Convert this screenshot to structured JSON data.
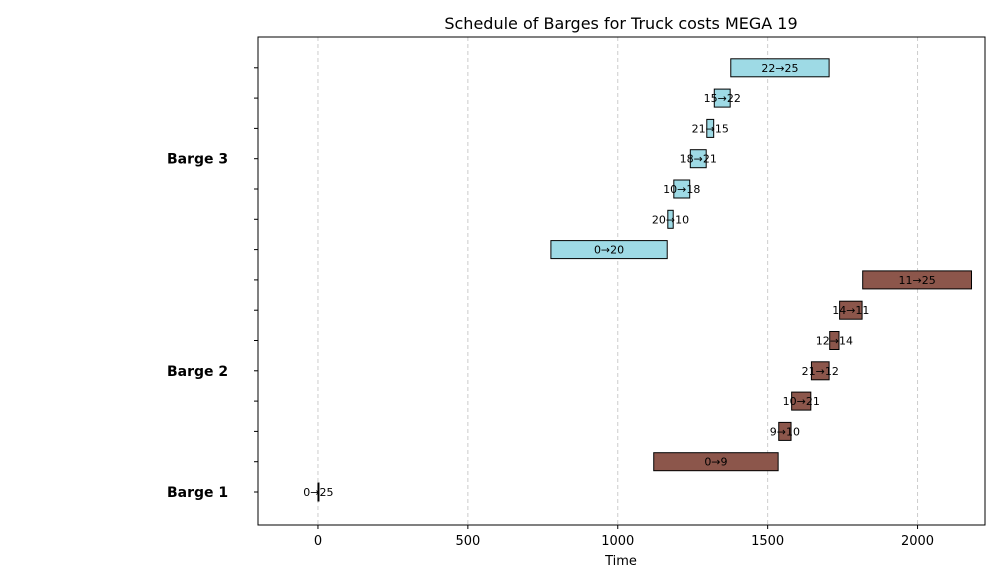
{
  "chart_data": {
    "type": "gantt",
    "title": "Schedule of Barges for Truck costs MEGA 19",
    "xlabel": "Time",
    "ylabel": "",
    "xlim": [
      -200,
      2225
    ],
    "xticks": [
      0,
      500,
      1000,
      1500,
      2000
    ],
    "grid": "x-dashed",
    "rows": 15,
    "groups": [
      {
        "name": "Barge 1",
        "label_row": 0
      },
      {
        "name": "Barge 2",
        "label_row": 4
      },
      {
        "name": "Barge 3",
        "label_row": 11
      }
    ],
    "series": [
      {
        "name": "Barge 1",
        "color": "#ffffff",
        "tasks": [
          {
            "label": "0→25",
            "row": 0,
            "start": 0,
            "end": 3
          }
        ]
      },
      {
        "name": "Barge 2",
        "color": "#8c564b",
        "tasks": [
          {
            "label": "0→9",
            "row": 1,
            "start": 1120,
            "end": 1535
          },
          {
            "label": "9→10",
            "row": 2,
            "start": 1537,
            "end": 1578
          },
          {
            "label": "10→21",
            "row": 3,
            "start": 1580,
            "end": 1644
          },
          {
            "label": "21→12",
            "row": 4,
            "start": 1646,
            "end": 1705
          },
          {
            "label": "12→14",
            "row": 5,
            "start": 1707,
            "end": 1738
          },
          {
            "label": "14→11",
            "row": 6,
            "start": 1740,
            "end": 1815
          },
          {
            "label": "11→25",
            "row": 7,
            "start": 1817,
            "end": 2180
          }
        ]
      },
      {
        "name": "Barge 3",
        "color": "#9edae5",
        "tasks": [
          {
            "label": "0→20",
            "row": 8,
            "start": 777,
            "end": 1165
          },
          {
            "label": "20→10",
            "row": 9,
            "start": 1167,
            "end": 1185
          },
          {
            "label": "10→18",
            "row": 10,
            "start": 1187,
            "end": 1240
          },
          {
            "label": "18→21",
            "row": 11,
            "start": 1242,
            "end": 1295
          },
          {
            "label": "21→15",
            "row": 12,
            "start": 1297,
            "end": 1320
          },
          {
            "label": "15→22",
            "row": 13,
            "start": 1322,
            "end": 1375
          },
          {
            "label": "22→25",
            "row": 14,
            "start": 1377,
            "end": 1705
          }
        ]
      }
    ]
  }
}
